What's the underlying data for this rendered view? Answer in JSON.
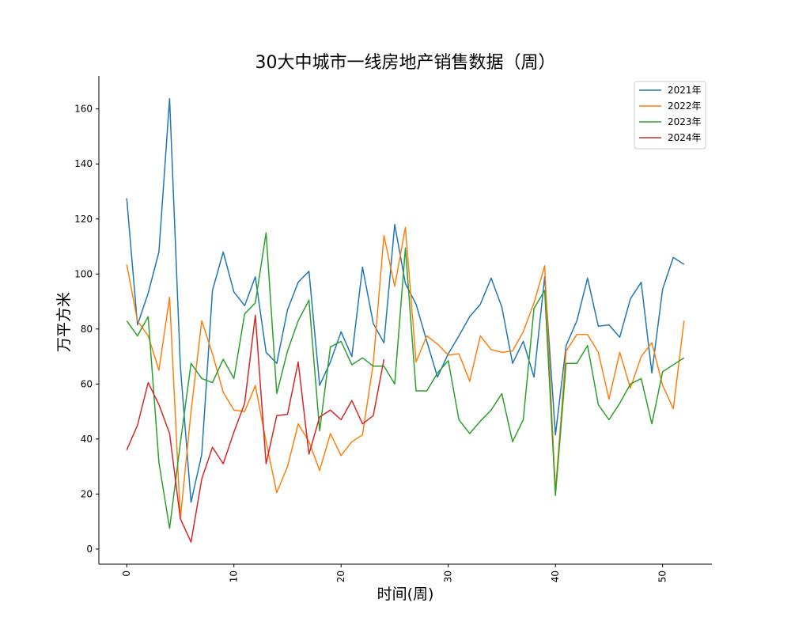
{
  "chart_data": {
    "type": "line",
    "title": "30大中城市一线房地产销售数据（周）",
    "xlabel": "时间(周)",
    "ylabel": "万平方米",
    "xlim": [
      -2.6,
      54.6
    ],
    "ylim": [
      -5.5,
      172
    ],
    "xticks": [
      0,
      10,
      20,
      30,
      40,
      50
    ],
    "yticks": [
      0,
      20,
      40,
      60,
      80,
      100,
      120,
      140,
      160
    ],
    "grid": false,
    "legend_position": "top-right",
    "series": [
      {
        "name": "2021年",
        "color": "#1f77b4",
        "values": [
          127.5,
          81.5,
          93.0,
          108.0,
          163.8,
          66.5,
          17.0,
          34.5,
          94.0,
          108.0,
          93.5,
          88.5,
          99.0,
          71.5,
          67.5,
          87.0,
          97.0,
          101.0,
          59.5,
          68.0,
          79.0,
          70.0,
          102.5,
          82.0,
          75.0,
          118.0,
          96.5,
          89.0,
          75.5,
          62.5,
          71.0,
          77.5,
          84.5,
          89.0,
          98.5,
          88.0,
          67.5,
          75.5,
          62.5,
          99.0,
          41.5,
          74.0,
          83.0,
          98.5,
          81.0,
          81.5,
          77.0,
          91.0,
          97.0,
          64.0,
          94.5,
          106.0,
          103.5
        ]
      },
      {
        "name": "2022年",
        "color": "#ff7f0e",
        "values": [
          103.5,
          83.0,
          77.5,
          65.0,
          91.5,
          11.0,
          50.0,
          83.0,
          71.0,
          57.0,
          50.5,
          50.0,
          59.5,
          39.0,
          20.5,
          30.0,
          45.5,
          39.0,
          28.5,
          42.0,
          34.0,
          39.0,
          41.5,
          67.5,
          114.0,
          95.5,
          117.0,
          68.0,
          77.5,
          74.5,
          70.5,
          71.0,
          61.0,
          77.5,
          72.5,
          71.5,
          72.0,
          79.0,
          89.5,
          103.0,
          21.0,
          72.0,
          78.0,
          78.0,
          71.5,
          54.5,
          71.5,
          58.5,
          70.0,
          75.0,
          59.5,
          51.0,
          83.0
        ]
      },
      {
        "name": "2023年",
        "color": "#2ca02c",
        "values": [
          83.0,
          77.5,
          84.5,
          31.5,
          7.5,
          38.5,
          67.5,
          62.0,
          60.5,
          69.0,
          62.0,
          85.5,
          89.5,
          115.0,
          56.5,
          72.0,
          83.0,
          90.5,
          43.0,
          73.5,
          75.5,
          67.0,
          69.5,
          66.5,
          66.5,
          60.0,
          109.5,
          57.5,
          57.5,
          64.0,
          68.5,
          47.0,
          42.0,
          46.5,
          50.5,
          56.5,
          39.0,
          47.0,
          87.5,
          94.0,
          19.5,
          67.5,
          67.5,
          74.0,
          52.5,
          47.0,
          53.0,
          60.0,
          62.0,
          45.5,
          64.5,
          67.0,
          69.5
        ]
      },
      {
        "name": "2024年",
        "color": "#d62728",
        "values": [
          36.0,
          45.0,
          60.5,
          52.5,
          42.0,
          11.0,
          2.5,
          25.5,
          37.0,
          31.0,
          42.5,
          53.0,
          85.0,
          31.0,
          48.5,
          49.0,
          68.0,
          34.5,
          48.0,
          50.5,
          47.0,
          54.0,
          45.5,
          48.5,
          69.0
        ]
      }
    ]
  }
}
